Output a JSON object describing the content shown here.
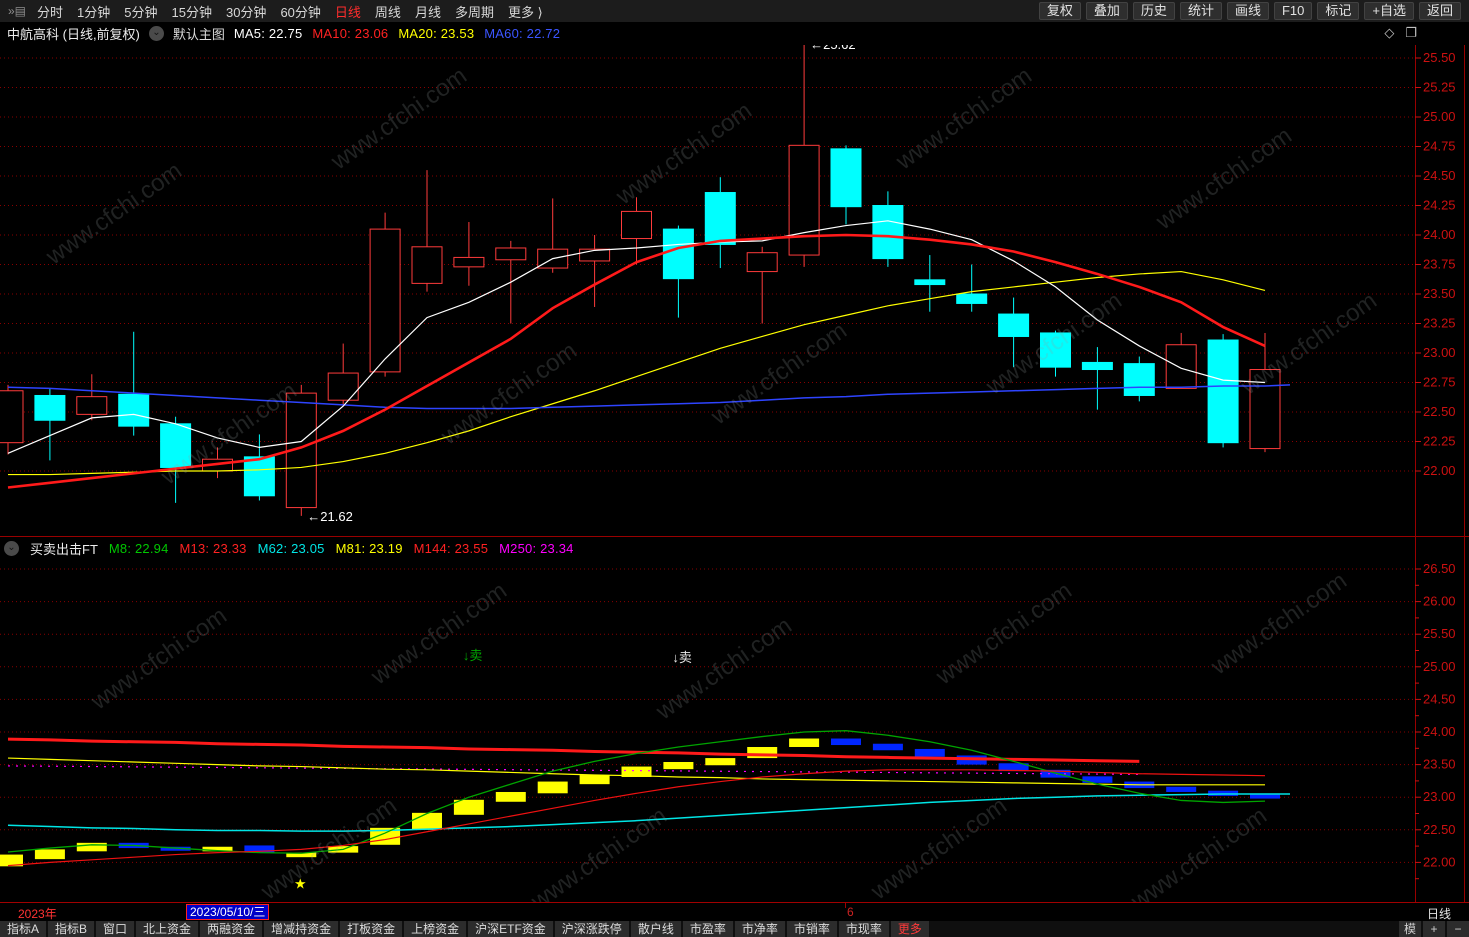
{
  "topbar": {
    "collapse_icon": "»▤",
    "left_items": [
      {
        "label": "分时"
      },
      {
        "label": "1分钟"
      },
      {
        "label": "5分钟"
      },
      {
        "label": "15分钟"
      },
      {
        "label": "30分钟"
      },
      {
        "label": "60分钟"
      },
      {
        "label": "日线",
        "active": true
      },
      {
        "label": "周线"
      },
      {
        "label": "月线"
      },
      {
        "label": "多周期"
      },
      {
        "label": "更多 ⟩"
      }
    ],
    "right_items": [
      {
        "label": "复权"
      },
      {
        "label": "叠加"
      },
      {
        "label": "历史"
      },
      {
        "label": "统计"
      },
      {
        "label": "画线"
      },
      {
        "label": "F10"
      },
      {
        "label": "标记"
      },
      {
        "label": "+自选"
      },
      {
        "label": "返回"
      }
    ]
  },
  "titlebar": {
    "stock_title": "中航高科 (日线,前复权)",
    "dropdown_icon": "⌄",
    "overlay_label": "默认主图",
    "ma_labels": [
      {
        "text": "MA5: 22.75",
        "color": "#ffffff"
      },
      {
        "text": "MA10: 23.06",
        "color": "#ff2222"
      },
      {
        "text": "MA20: 23.53",
        "color": "#ffff00"
      },
      {
        "text": "MA60: 22.72",
        "color": "#3b55ff"
      }
    ],
    "diamond_icon": "◇",
    "split_icon": "❐"
  },
  "sub_header": {
    "dropdown_icon": "⌄",
    "indicator_name": "买卖出击FT",
    "values": [
      {
        "text": "M8: 22.94",
        "color": "#00c800"
      },
      {
        "text": "M13: 23.33",
        "color": "#ff2222"
      },
      {
        "text": "M62: 23.05",
        "color": "#00e5e5"
      },
      {
        "text": "M81: 23.19",
        "color": "#ffff00"
      },
      {
        "text": "M144: 23.55",
        "color": "#ff2222"
      },
      {
        "text": "M250: 23.34",
        "color": "#ff00ff"
      }
    ]
  },
  "watermark": {
    "text": "www.cfchi.com"
  },
  "date_row": {
    "year_label": "2023年",
    "selected_date": "2023/05/10/三",
    "month_label": "6",
    "period_label": "日线"
  },
  "bottom_bar": {
    "items": [
      {
        "label": "指标A"
      },
      {
        "label": "指标B"
      },
      {
        "label": "窗口"
      },
      {
        "label": "北上资金"
      },
      {
        "label": "两融资金"
      },
      {
        "label": "增减持资金"
      },
      {
        "label": "打板资金"
      },
      {
        "label": "上榜资金"
      },
      {
        "label": "沪深ETF资金"
      },
      {
        "label": "沪深涨跌停"
      },
      {
        "label": "散户线"
      },
      {
        "label": "市盈率"
      },
      {
        "label": "市净率"
      },
      {
        "label": "市销率"
      },
      {
        "label": "市现率"
      },
      {
        "label": "更多",
        "accent": true
      }
    ],
    "right_items": [
      {
        "label": "模 板"
      },
      {
        "label": "+"
      },
      {
        "label": "−"
      }
    ]
  },
  "colors": {
    "candle_up": "#ff3b3b",
    "candle_down": "#00ffff",
    "grid": "#a00000",
    "axis_text": "#cc1111",
    "border": "#990000",
    "block_up": "#ffff00",
    "block_down": "#0026ff"
  },
  "chart_data": [
    {
      "type": "candlestick",
      "title": "中航高科 日线 前复权 主图",
      "ylim": [
        21.62,
        25.62
      ],
      "y_ticks": [
        25.5,
        25.25,
        25.0,
        24.75,
        24.5,
        24.25,
        24.0,
        23.75,
        23.5,
        23.25,
        23.0,
        22.75,
        22.5,
        22.25,
        22.0
      ],
      "candles": [
        {
          "o": 22.24,
          "h": 22.73,
          "l": 22.14,
          "c": 22.68
        },
        {
          "o": 22.64,
          "h": 22.7,
          "l": 22.09,
          "c": 22.43
        },
        {
          "o": 22.48,
          "h": 22.82,
          "l": 22.43,
          "c": 22.63
        },
        {
          "o": 22.65,
          "h": 23.18,
          "l": 22.3,
          "c": 22.38
        },
        {
          "o": 22.4,
          "h": 22.46,
          "l": 21.73,
          "c": 22.03
        },
        {
          "o": 22.0,
          "h": 22.2,
          "l": 21.94,
          "c": 22.1
        },
        {
          "o": 22.12,
          "h": 22.31,
          "l": 21.75,
          "c": 21.79
        },
        {
          "o": 21.69,
          "h": 22.73,
          "l": 21.62,
          "c": 22.66
        },
        {
          "o": 22.6,
          "h": 23.08,
          "l": 22.55,
          "c": 22.83
        },
        {
          "o": 22.84,
          "h": 24.19,
          "l": 22.8,
          "c": 24.05
        },
        {
          "o": 23.59,
          "h": 24.55,
          "l": 23.52,
          "c": 23.9
        },
        {
          "o": 23.73,
          "h": 24.11,
          "l": 23.57,
          "c": 23.81
        },
        {
          "o": 23.79,
          "h": 23.95,
          "l": 23.25,
          "c": 23.89
        },
        {
          "o": 23.72,
          "h": 24.31,
          "l": 23.68,
          "c": 23.88
        },
        {
          "o": 23.78,
          "h": 24.0,
          "l": 23.39,
          "c": 23.88
        },
        {
          "o": 23.97,
          "h": 24.32,
          "l": 23.75,
          "c": 24.2
        },
        {
          "o": 24.05,
          "h": 24.08,
          "l": 23.3,
          "c": 23.63
        },
        {
          "o": 24.36,
          "h": 24.49,
          "l": 23.72,
          "c": 23.92
        },
        {
          "o": 23.69,
          "h": 23.9,
          "l": 23.25,
          "c": 23.85
        },
        {
          "o": 23.83,
          "h": 25.62,
          "l": 23.73,
          "c": 24.76
        },
        {
          "o": 24.73,
          "h": 24.76,
          "l": 24.09,
          "c": 24.24
        },
        {
          "o": 24.25,
          "h": 24.37,
          "l": 23.73,
          "c": 23.8
        },
        {
          "o": 23.62,
          "h": 23.83,
          "l": 23.35,
          "c": 23.58
        },
        {
          "o": 23.5,
          "h": 23.75,
          "l": 23.35,
          "c": 23.42
        },
        {
          "o": 23.33,
          "h": 23.47,
          "l": 22.88,
          "c": 23.14
        },
        {
          "o": 23.17,
          "h": 23.19,
          "l": 22.8,
          "c": 22.88
        },
        {
          "o": 22.92,
          "h": 23.05,
          "l": 22.52,
          "c": 22.86
        },
        {
          "o": 22.91,
          "h": 22.97,
          "l": 22.59,
          "c": 22.64
        },
        {
          "o": 22.7,
          "h": 23.17,
          "l": 22.7,
          "c": 23.07
        },
        {
          "o": 23.11,
          "h": 23.16,
          "l": 22.2,
          "c": 22.24
        },
        {
          "o": 22.19,
          "h": 23.17,
          "l": 22.16,
          "c": 22.86
        }
      ],
      "ma_series": [
        {
          "name": "MA20",
          "color": "#ffff00",
          "width": 1.2,
          "values": [
            21.97,
            21.97,
            21.98,
            21.99,
            22.0,
            22.0,
            22.01,
            22.03,
            22.08,
            22.15,
            22.24,
            22.34,
            22.46,
            22.57,
            22.68,
            22.8,
            22.92,
            23.04,
            23.14,
            23.24,
            23.32,
            23.4,
            23.46,
            23.52,
            23.56,
            23.6,
            23.64,
            23.67,
            23.69,
            23.62,
            23.53
          ]
        },
        {
          "name": "MA60",
          "color": "#2e44ff",
          "width": 1.5,
          "extend_x": 1290,
          "extend_v": 22.73,
          "values": [
            22.71,
            22.7,
            22.68,
            22.66,
            22.64,
            22.62,
            22.6,
            22.58,
            22.56,
            22.54,
            22.53,
            22.53,
            22.53,
            22.54,
            22.55,
            22.56,
            22.57,
            22.58,
            22.6,
            22.62,
            22.63,
            22.65,
            22.66,
            22.67,
            22.68,
            22.69,
            22.7,
            22.71,
            22.71,
            22.72,
            22.72
          ]
        },
        {
          "name": "MA5",
          "color": "#ffffff",
          "width": 1.2,
          "values": [
            22.15,
            22.3,
            22.45,
            22.48,
            22.4,
            22.28,
            22.2,
            22.25,
            22.55,
            22.95,
            23.3,
            23.43,
            23.6,
            23.8,
            23.87,
            23.89,
            23.92,
            23.94,
            23.95,
            24.02,
            24.08,
            24.12,
            24.05,
            23.96,
            23.78,
            23.56,
            23.28,
            23.06,
            22.87,
            22.77,
            22.75
          ]
        },
        {
          "name": "MA10",
          "color": "#ff1a1a",
          "width": 2.6,
          "values": [
            21.86,
            21.9,
            21.94,
            21.98,
            22.02,
            22.06,
            22.1,
            22.2,
            22.34,
            22.52,
            22.72,
            22.92,
            23.12,
            23.38,
            23.58,
            23.77,
            23.89,
            23.95,
            23.97,
            23.99,
            24.0,
            23.99,
            23.96,
            23.92,
            23.86,
            23.77,
            23.67,
            23.56,
            23.43,
            23.22,
            23.06
          ]
        }
      ],
      "annotations": [
        {
          "text": "←25.62",
          "candle": 20,
          "price": 25.62
        },
        {
          "text": "←21.62",
          "candle": 8,
          "price": 21.62
        }
      ]
    },
    {
      "type": "custom-indicator-blocks",
      "name": "买卖出击FT",
      "y_ticks": [
        26.5,
        26.0,
        25.5,
        25.0,
        24.5,
        24.0,
        23.5,
        23.0,
        22.5,
        22.0
      ],
      "blocks": [
        [
          21.94,
          22.12,
          "up"
        ],
        [
          22.05,
          22.2,
          "up"
        ],
        [
          22.17,
          22.3,
          "up"
        ],
        [
          22.3,
          22.22,
          "down"
        ],
        [
          22.24,
          22.18,
          "down"
        ],
        [
          22.17,
          22.24,
          "up"
        ],
        [
          22.26,
          22.15,
          "down"
        ],
        [
          22.08,
          22.15,
          "up"
        ],
        [
          22.15,
          22.25,
          "up"
        ],
        [
          22.27,
          22.53,
          "up"
        ],
        [
          22.5,
          22.76,
          "up"
        ],
        [
          22.73,
          22.96,
          "up"
        ],
        [
          22.93,
          23.08,
          "up"
        ],
        [
          23.06,
          23.24,
          "up"
        ],
        [
          23.2,
          23.34,
          "up"
        ],
        [
          23.31,
          23.47,
          "up"
        ],
        [
          23.43,
          23.54,
          "up"
        ],
        [
          23.49,
          23.6,
          "up"
        ],
        [
          23.6,
          23.77,
          "up"
        ],
        [
          23.77,
          23.9,
          "up"
        ],
        [
          23.9,
          23.8,
          "down"
        ],
        [
          23.82,
          23.72,
          "down"
        ],
        [
          23.74,
          23.62,
          "down"
        ],
        [
          23.64,
          23.5,
          "down"
        ],
        [
          23.52,
          23.4,
          "down"
        ],
        [
          23.42,
          23.3,
          "down"
        ],
        [
          23.32,
          23.22,
          "down"
        ],
        [
          23.24,
          23.14,
          "down"
        ],
        [
          23.16,
          23.08,
          "down"
        ],
        [
          23.1,
          23.02,
          "down"
        ],
        [
          23.04,
          22.98,
          "down"
        ]
      ],
      "lines": [
        {
          "name": "M144",
          "color": "#ff1a1a",
          "width": 3,
          "values": [
            23.89,
            23.88,
            23.86,
            23.85,
            23.84,
            23.82,
            23.81,
            23.8,
            23.78,
            23.77,
            23.76,
            23.74,
            23.73,
            23.72,
            23.7,
            23.69,
            23.68,
            23.66,
            23.65,
            23.64,
            23.62,
            23.61,
            23.6,
            23.59,
            23.58,
            23.57,
            23.56,
            23.55
          ]
        },
        {
          "name": "M250",
          "color": "#ff00ff",
          "width": 1.2,
          "dotted": true,
          "points": [
            [
              1,
              23.48
            ],
            [
              28,
              23.35
            ]
          ]
        },
        {
          "name": "M81",
          "color": "#ffff00",
          "width": 1.2,
          "values": [
            23.6,
            23.58,
            23.56,
            23.54,
            23.52,
            23.5,
            23.48,
            23.47,
            23.45,
            23.43,
            23.42,
            23.4,
            23.38,
            23.36,
            23.34,
            23.33,
            23.31,
            23.3,
            23.28,
            23.27,
            23.26,
            23.25,
            23.24,
            23.23,
            23.22,
            23.21,
            23.2,
            23.19,
            23.19,
            23.19,
            23.19
          ]
        },
        {
          "name": "M62",
          "color": "#00e5e5",
          "width": 1.5,
          "extend_x": 1290,
          "extend_v": 23.05,
          "values": [
            22.57,
            22.55,
            22.53,
            22.52,
            22.5,
            22.49,
            22.49,
            22.48,
            22.48,
            22.49,
            22.51,
            22.53,
            22.55,
            22.58,
            22.61,
            22.64,
            22.68,
            22.72,
            22.76,
            22.8,
            22.84,
            22.88,
            22.92,
            22.95,
            22.98,
            23.0,
            23.02,
            23.03,
            23.04,
            23.05,
            23.05
          ]
        },
        {
          "name": "M8",
          "color": "#00a400",
          "width": 1.3,
          "values": [
            22.16,
            22.22,
            22.27,
            22.26,
            22.22,
            22.18,
            22.15,
            22.14,
            22.2,
            22.45,
            22.75,
            23.0,
            23.2,
            23.4,
            23.55,
            23.67,
            23.77,
            23.85,
            23.93,
            24.0,
            24.02,
            23.95,
            23.85,
            23.72,
            23.55,
            23.37,
            23.2,
            23.06,
            22.95,
            22.92,
            22.94
          ]
        },
        {
          "name": "M13",
          "color": "#ee1111",
          "width": 1.2,
          "values": [
            21.95,
            22.0,
            22.04,
            22.08,
            22.12,
            22.15,
            22.17,
            22.2,
            22.26,
            22.35,
            22.47,
            22.59,
            22.71,
            22.83,
            22.95,
            23.06,
            23.16,
            23.24,
            23.31,
            23.36,
            23.4,
            23.42,
            23.42,
            23.42,
            23.41,
            23.4,
            23.38,
            23.36,
            23.35,
            23.34,
            23.33
          ]
        }
      ],
      "markers": [
        {
          "text": "↓卖",
          "candle": 12,
          "price": 25.18,
          "color": "#00a400"
        },
        {
          "text": "↓卖",
          "candle": 17,
          "price": 25.15,
          "color": "#e8e8e8"
        }
      ],
      "star": {
        "glyph": "★",
        "candle": 8,
        "price": 21.68,
        "color": "#ffff00"
      }
    }
  ]
}
